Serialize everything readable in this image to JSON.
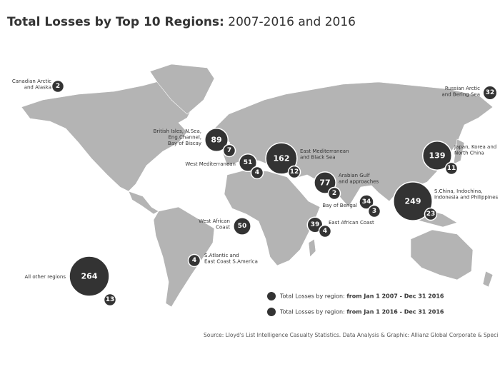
{
  "header": {
    "title_bold": "Total Losses by Top 10 Regions:",
    "title_rest": "2007-2016 and 2016"
  },
  "regions": [
    {
      "label": [
        "Canadian Arctic",
        "and Alaska"
      ],
      "values": [
        2
      ]
    },
    {
      "label": [
        "Russian Arctic",
        "and Bering Sea"
      ],
      "values": [
        32
      ]
    },
    {
      "label": [
        "British Isles, N.Sea,",
        "Eng.Channel,",
        "Bay of Biscay"
      ],
      "values": [
        89,
        7
      ]
    },
    {
      "label": [
        "West Mediterranean"
      ],
      "values": [
        51,
        4
      ]
    },
    {
      "label": [
        "East Mediterranean",
        "and Black Sea"
      ],
      "values": [
        162,
        12
      ]
    },
    {
      "label": [
        "Arabian Gulf",
        "and approaches"
      ],
      "values": [
        77,
        2
      ]
    },
    {
      "label": [
        "Japan, Korea and",
        "North China"
      ],
      "values": [
        139,
        11
      ]
    },
    {
      "label": [
        "S.China, Indochina,",
        "Indonesia and Philippines"
      ],
      "values": [
        249,
        23
      ]
    },
    {
      "label": [
        "Bay of Bengal"
      ],
      "values": [
        34,
        3
      ]
    },
    {
      "label": [
        "East African Coast"
      ],
      "values": [
        39,
        4
      ]
    },
    {
      "label": [
        "West African",
        "Coast"
      ],
      "values": [
        50
      ]
    },
    {
      "label": [
        "S.Atlantic and",
        "East Coast S.America"
      ],
      "values": [
        4
      ]
    },
    {
      "label": [
        "All other regions"
      ],
      "values": [
        264,
        13
      ]
    }
  ],
  "legend": [
    {
      "prefix": "Total Losses by region:",
      "period": "from Jan 1 2007 - Dec 31 2016"
    },
    {
      "prefix": "Total Losses by region:",
      "period": "from Jan 1 2016 - Dec 31 2016"
    }
  ],
  "source": "Source: Lloyd's List Intelligence Casualty Statistics.  Data Analysis & Graphic: Allianz Global Corporate & Speci"
}
